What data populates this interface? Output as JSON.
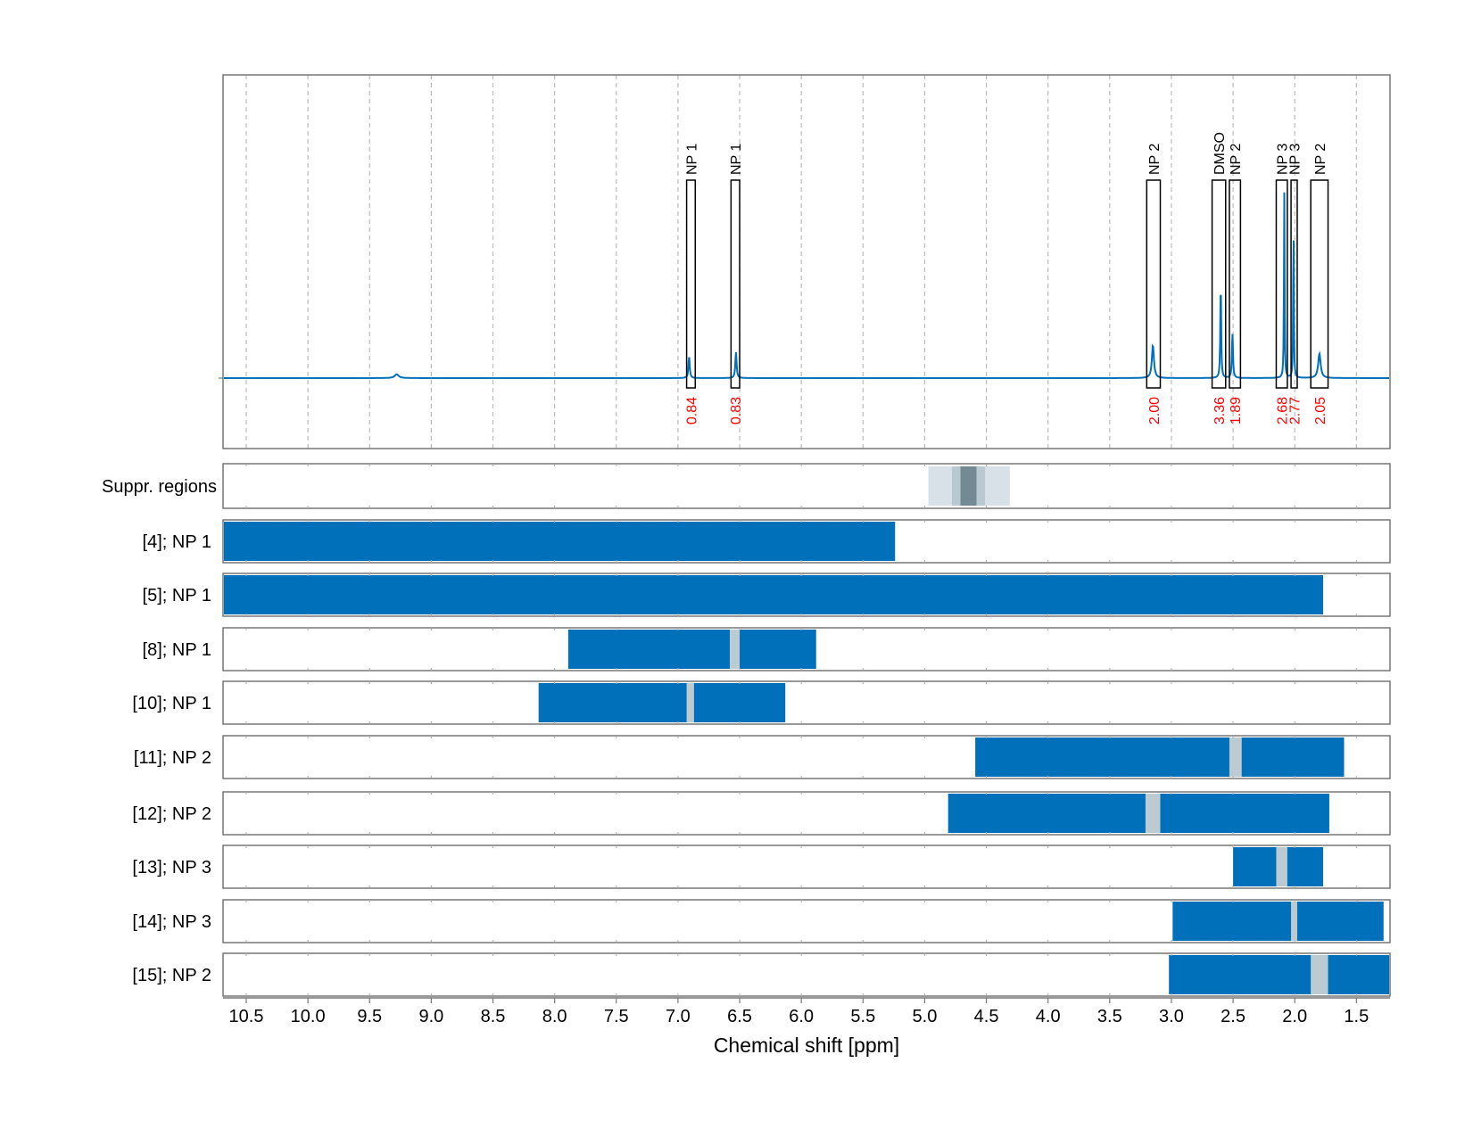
{
  "chart_data": {
    "type": "line",
    "xlabel": "Chemical shift [ppm]",
    "xlim": [
      10.69,
      1.23
    ],
    "x_reversed": true,
    "x_ticks": [
      "10.5",
      "10.0",
      "9.5",
      "9.0",
      "8.5",
      "8.0",
      "7.5",
      "7.0",
      "6.5",
      "6.0",
      "5.5",
      "5.0",
      "4.5",
      "4.0",
      "3.5",
      "3.0",
      "2.5",
      "2.0",
      "1.5"
    ],
    "grid": "vertical dashed (spectrum panel)",
    "colors": {
      "spectrum": "#0070bb",
      "bar": "#0070bb",
      "gap": "#bccbd2",
      "integral": "#ff0000",
      "suppr_light": "#d9e1e8",
      "suppr_mid": "#b8c9d1",
      "suppr_dark": "#738a94"
    },
    "spectrum": {
      "peaks": [
        {
          "ppm": 9.28,
          "intensity": 0.02,
          "width": 0.02
        },
        {
          "ppm": 6.91,
          "intensity": 0.115,
          "width": 0.006
        },
        {
          "ppm": 6.53,
          "intensity": 0.14,
          "width": 0.006
        },
        {
          "ppm": 3.15,
          "intensity": 0.175,
          "width": 0.01
        },
        {
          "ppm": 2.6,
          "intensity": 0.53,
          "width": 0.004
        },
        {
          "ppm": 2.505,
          "intensity": 0.24,
          "width": 0.005
        },
        {
          "ppm": 2.085,
          "intensity": 1.0,
          "width": 0.003
        },
        {
          "ppm": 2.01,
          "intensity": 0.86,
          "width": 0.003
        },
        {
          "ppm": 1.8,
          "intensity": 0.13,
          "width": 0.012
        }
      ]
    },
    "annotations": [
      {
        "label": "NP 1",
        "integral": "0.84",
        "range": [
          6.93,
          6.86
        ]
      },
      {
        "label": "NP 1",
        "integral": "0.83",
        "range": [
          6.57,
          6.5
        ]
      },
      {
        "label": "NP 2",
        "integral": "2.00",
        "range": [
          3.2,
          3.09
        ]
      },
      {
        "label": "DMSO",
        "integral": "3.36",
        "range": [
          2.67,
          2.56
        ]
      },
      {
        "label": "NP 2",
        "integral": "1.89",
        "range": [
          2.53,
          2.44
        ]
      },
      {
        "label": "NP 3",
        "integral": "2.68",
        "range": [
          2.15,
          2.06
        ]
      },
      {
        "label": "NP 3",
        "integral": "2.77",
        "range": [
          2.03,
          1.98
        ]
      },
      {
        "label": "NP 2",
        "integral": "2.05",
        "range": [
          1.87,
          1.73
        ]
      }
    ],
    "suppr_regions": {
      "label": "Suppr. regions",
      "bands": [
        {
          "range": [
            4.97,
            4.31
          ],
          "level": "light"
        },
        {
          "range": [
            4.78,
            4.51
          ],
          "level": "mid"
        },
        {
          "range": [
            4.71,
            4.58
          ],
          "level": "dark"
        }
      ]
    },
    "rows": [
      {
        "label": "[4]; NP 1",
        "range": [
          10.69,
          5.24
        ],
        "gap": null
      },
      {
        "label": "[5]; NP 1",
        "range": [
          10.69,
          1.77
        ],
        "gap": null
      },
      {
        "label": "[8]; NP 1",
        "range": [
          7.89,
          5.88
        ],
        "gap": [
          6.58,
          6.5
        ]
      },
      {
        "label": "[10]; NP 1",
        "range": [
          8.13,
          6.13
        ],
        "gap": [
          6.93,
          6.87
        ]
      },
      {
        "label": "[11]; NP 2",
        "range": [
          4.59,
          1.6
        ],
        "gap": [
          2.53,
          2.43
        ]
      },
      {
        "label": "[12]; NP 2",
        "range": [
          4.81,
          1.72
        ],
        "gap": [
          3.21,
          3.09
        ]
      },
      {
        "label": "[13]; NP 3",
        "range": [
          2.5,
          1.77
        ],
        "gap": [
          2.15,
          2.06
        ]
      },
      {
        "label": "[14]; NP 3",
        "range": [
          2.99,
          1.28
        ],
        "gap": [
          2.03,
          1.98
        ]
      },
      {
        "label": "[15]; NP 2",
        "range": [
          3.02,
          1.23
        ],
        "gap": [
          1.87,
          1.73
        ]
      }
    ]
  }
}
